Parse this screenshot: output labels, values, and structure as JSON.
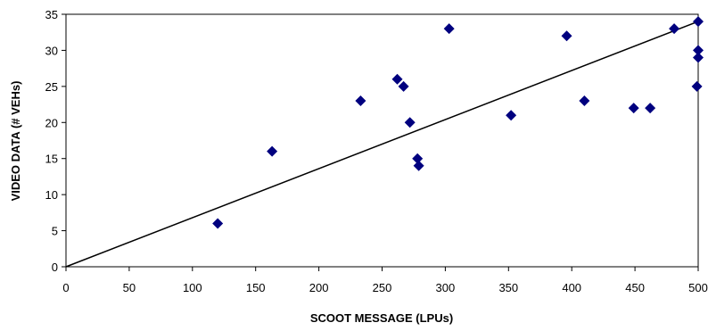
{
  "chart_data": {
    "type": "scatter",
    "title": "",
    "xlabel": "SCOOT MESSAGE (LPUs)",
    "ylabel": "VIDEO DATA (# VEHs)",
    "xlim": [
      0,
      500
    ],
    "ylim": [
      0,
      35
    ],
    "xticks": [
      0,
      50,
      100,
      150,
      200,
      250,
      300,
      350,
      400,
      450,
      500
    ],
    "yticks": [
      0,
      5,
      10,
      15,
      20,
      25,
      30,
      35
    ],
    "grid": false,
    "legend": "none",
    "marker": "diamond",
    "marker_color": "#00007f",
    "trendline": {
      "type": "linear",
      "from": [
        0,
        0
      ],
      "to": [
        500,
        34
      ]
    },
    "series": [
      {
        "points": [
          {
            "x": 120,
            "y": 6
          },
          {
            "x": 163,
            "y": 16
          },
          {
            "x": 233,
            "y": 23
          },
          {
            "x": 262,
            "y": 26
          },
          {
            "x": 267,
            "y": 25
          },
          {
            "x": 272,
            "y": 20
          },
          {
            "x": 278,
            "y": 15
          },
          {
            "x": 279,
            "y": 14
          },
          {
            "x": 303,
            "y": 33
          },
          {
            "x": 352,
            "y": 21
          },
          {
            "x": 396,
            "y": 32
          },
          {
            "x": 410,
            "y": 23
          },
          {
            "x": 449,
            "y": 22
          },
          {
            "x": 462,
            "y": 22
          },
          {
            "x": 481,
            "y": 33
          },
          {
            "x": 499,
            "y": 25
          },
          {
            "x": 500,
            "y": 34
          },
          {
            "x": 500,
            "y": 30
          },
          {
            "x": 500,
            "y": 29
          }
        ]
      }
    ]
  }
}
